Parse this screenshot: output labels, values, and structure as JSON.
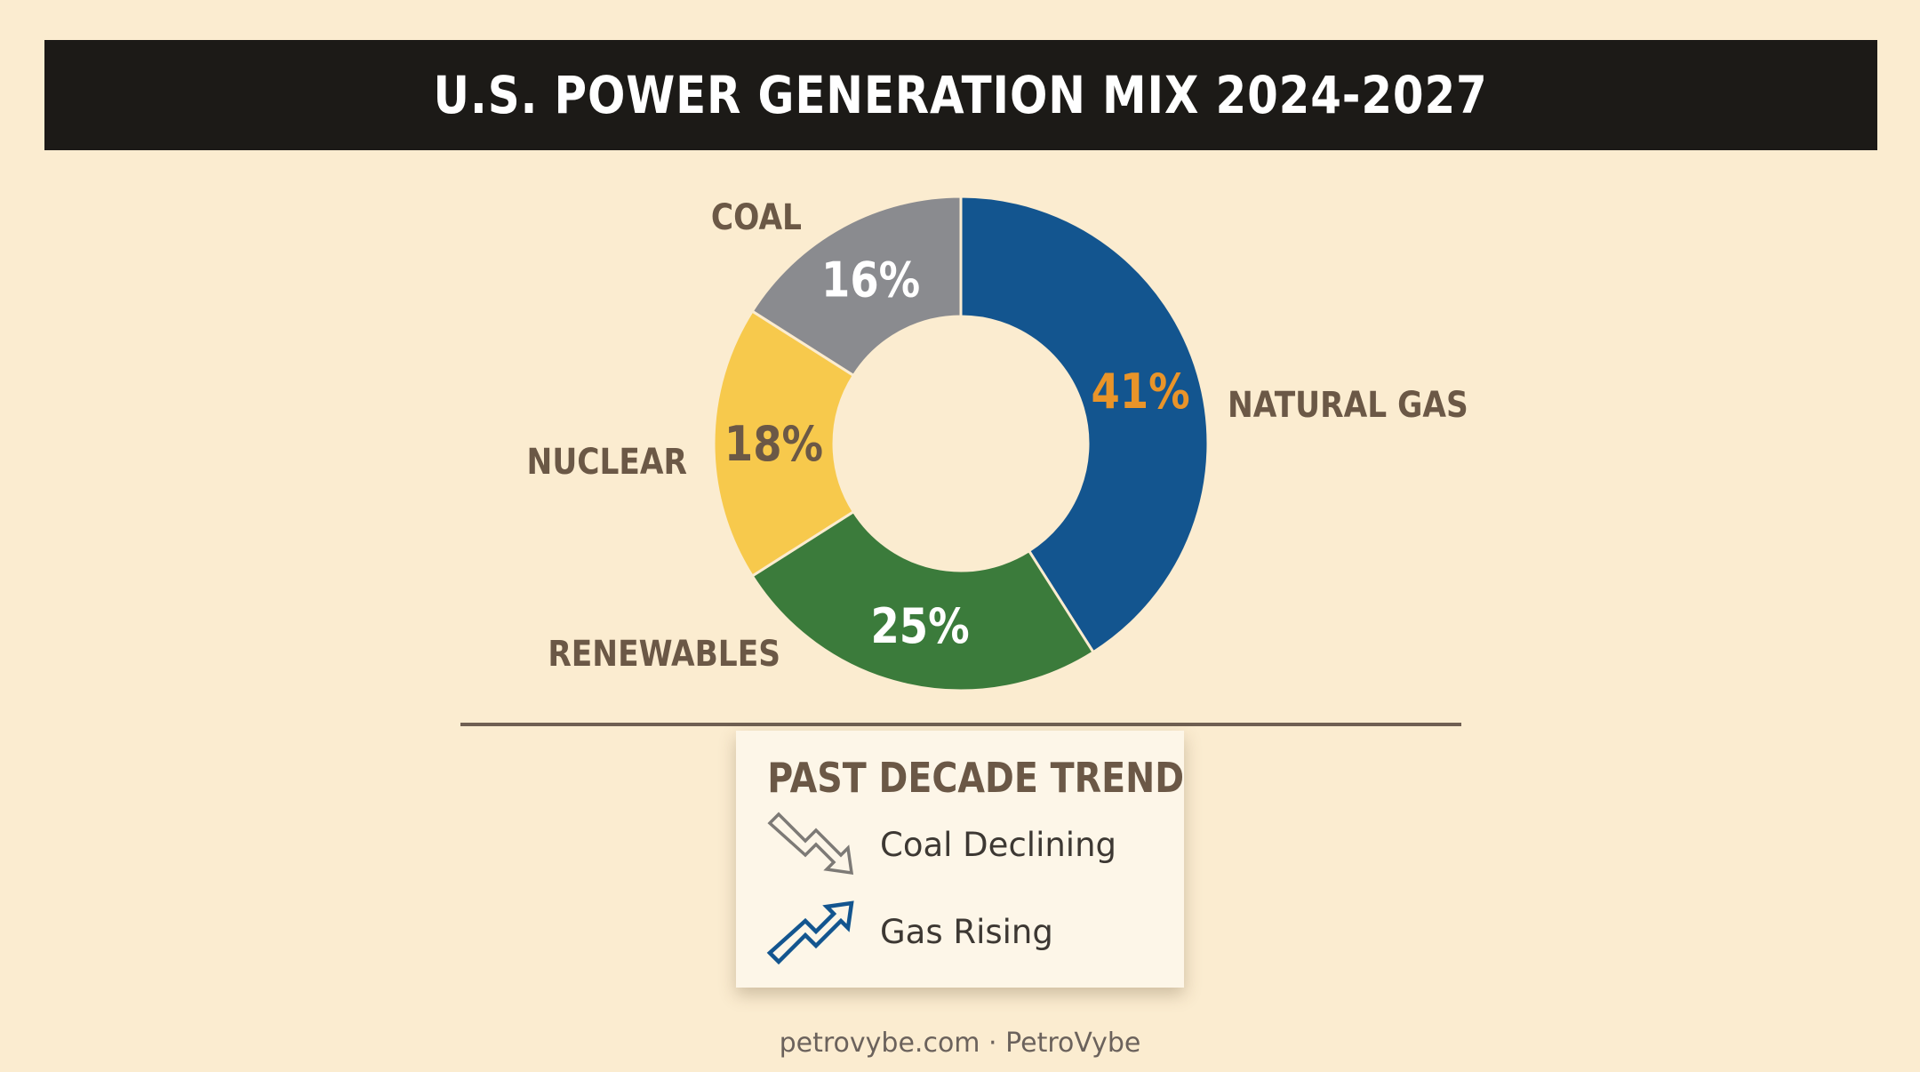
{
  "chart_data": {
    "type": "pie",
    "variant": "donut",
    "title": "U.S. POWER GENERATION MIX 2024-2027",
    "slices": [
      {
        "label": "NATURAL GAS",
        "value": 41,
        "display": "41%",
        "color": "#13558f",
        "text_color": "#e99429"
      },
      {
        "label": "RENEWABLES",
        "value": 25,
        "display": "25%",
        "color": "#3b7b3b",
        "text_color": "#ffffff"
      },
      {
        "label": "NUCLEAR",
        "value": 18,
        "display": "18%",
        "color": "#f7c94c",
        "text_color": "#6b5846"
      },
      {
        "label": "COAL",
        "value": 16,
        "display": "16%",
        "color": "#8a8b8f",
        "text_color": "#ffffff"
      }
    ]
  },
  "trend_card": {
    "title": "PAST DECADE TREND",
    "items": [
      {
        "label": "Coal Declining",
        "icon": "trend-down-arrow-icon",
        "color": "#7d7a76"
      },
      {
        "label": "Gas Rising",
        "icon": "trend-up-arrow-icon",
        "color": "#13558f"
      }
    ]
  },
  "footer": "petrovybe.com · PetroVybe"
}
